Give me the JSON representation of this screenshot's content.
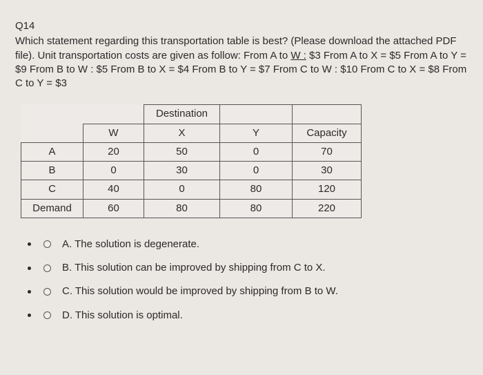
{
  "question": {
    "number": "Q14",
    "text_parts": {
      "p1": "Which statement regarding this transportation table is best? (Please download the attached PDF file). Unit transportation costs are given as follow: From A to ",
      "link1": "W :",
      "p2": " $3 From A to X = $5 From A to Y = $9 From B to W : $5 From B to X = $4 From B to Y = $7 From C to W : $10 From C to X = $8 From C to Y = $3"
    }
  },
  "table": {
    "dest_header": "Destination",
    "col_headers": {
      "w": "W",
      "x": "X",
      "y": "Y",
      "cap": "Capacity"
    },
    "rows": [
      {
        "origin": "A",
        "w": "20",
        "x": "50",
        "y": "0",
        "cap": "70"
      },
      {
        "origin": "B",
        "w": "0",
        "x": "30",
        "y": "0",
        "cap": "30"
      },
      {
        "origin": "C",
        "w": "40",
        "x": "0",
        "y": "80",
        "cap": "120"
      },
      {
        "origin": "Demand",
        "w": "60",
        "x": "80",
        "y": "80",
        "cap": "220"
      }
    ]
  },
  "options": [
    {
      "text": "A. The solution is degenerate."
    },
    {
      "text": "B. This solution can be improved by shipping from C to X."
    },
    {
      "text": "C. This solution would be improved by shipping from B to W."
    },
    {
      "text": "D. This solution is optimal."
    }
  ],
  "colors": {
    "background": "#ebe7e3",
    "text": "#2a2a2a",
    "border": "#555555"
  }
}
